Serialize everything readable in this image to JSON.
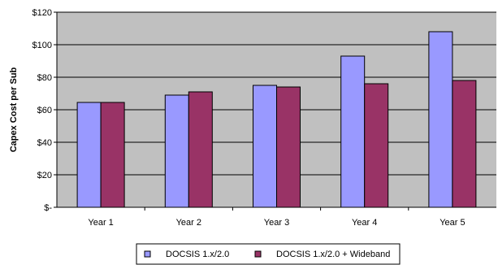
{
  "chart_data": {
    "type": "bar",
    "categories": [
      "Year 1",
      "Year 2",
      "Year 3",
      "Year 4",
      "Year 5"
    ],
    "series": [
      {
        "name": "DOCSIS 1.x/2.0",
        "values": [
          64.5,
          69,
          75,
          93,
          108
        ],
        "color": "#9999ff"
      },
      {
        "name": "DOCSIS 1.x/2.0 + Wideband",
        "values": [
          64.5,
          71,
          74,
          76,
          78
        ],
        "color": "#993366"
      }
    ],
    "ylabel": "Capex Cost per Sub",
    "ylim": [
      0,
      120
    ],
    "yticks": [
      {
        "value": 0,
        "label": "$-"
      },
      {
        "value": 20,
        "label": "$20"
      },
      {
        "value": 40,
        "label": "$40"
      },
      {
        "value": 60,
        "label": "$60"
      },
      {
        "value": 80,
        "label": "$80"
      },
      {
        "value": 100,
        "label": "$100"
      },
      {
        "value": 120,
        "label": "$120"
      }
    ],
    "grid": true,
    "legend": "bottom",
    "plot_background": "#c0c0c0"
  }
}
